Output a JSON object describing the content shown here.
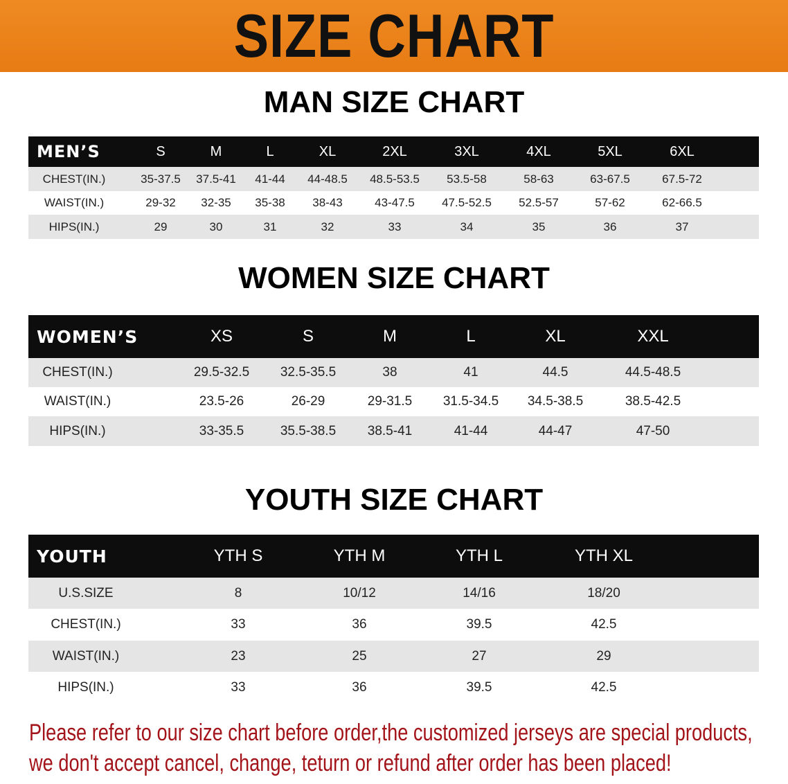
{
  "banner": {
    "title": "SIZE CHART",
    "color": "#e98019"
  },
  "men": {
    "title": "MAN SIZE CHART",
    "header": [
      "MEN’S",
      "S",
      "M",
      "L",
      "XL",
      "2XL",
      "3XL",
      "4XL",
      "5XL",
      "6XL"
    ],
    "rows": [
      [
        "CHEST(IN.)",
        "35-37.5",
        "37.5-41",
        "41-44",
        "44-48.5",
        "48.5-53.5",
        "53.5-58",
        "58-63",
        "63-67.5",
        "67.5-72"
      ],
      [
        "WAIST(IN.)",
        "29-32",
        "32-35",
        "35-38",
        "38-43",
        "43-47.5",
        "47.5-52.5",
        "52.5-57",
        "57-62",
        "62-66.5"
      ],
      [
        "HIPS(IN.)",
        "29",
        "30",
        "31",
        "32",
        "33",
        "34",
        "35",
        "36",
        "37"
      ]
    ]
  },
  "women": {
    "title": "WOMEN SIZE CHART",
    "header": [
      "WOMEN’S",
      "XS",
      "S",
      "M",
      "L",
      "XL",
      "XXL"
    ],
    "rows": [
      [
        "CHEST(IN.)",
        "29.5-32.5",
        "32.5-35.5",
        "38",
        "41",
        "44.5",
        "44.5-48.5"
      ],
      [
        "WAIST(IN.)",
        "23.5-26",
        "26-29",
        "29-31.5",
        "31.5-34.5",
        "34.5-38.5",
        "38.5-42.5"
      ],
      [
        "HIPS(IN.)",
        "33-35.5",
        "35.5-38.5",
        "38.5-41",
        "41-44",
        "44-47",
        "47-50"
      ]
    ]
  },
  "youth": {
    "title": "YOUTH SIZE CHART",
    "header": [
      "YOUTH",
      "YTH S",
      "YTH M",
      "YTH L",
      "YTH XL"
    ],
    "rows": [
      [
        "U.S.SIZE",
        "8",
        "10/12",
        "14/16",
        "18/20"
      ],
      [
        "CHEST(IN.)",
        "33",
        "36",
        "39.5",
        "42.5"
      ],
      [
        "WAIST(IN.)",
        "23",
        "25",
        "27",
        "29"
      ],
      [
        "HIPS(IN.)",
        "33",
        "36",
        "39.5",
        "42.5"
      ]
    ]
  },
  "note": {
    "line1": "Please refer to our size chart before order,the customized jerseys are special products,",
    "line2": "we don't accept cancel, change, teturn or refund after order has been placed!",
    "color": "#a3141a"
  }
}
